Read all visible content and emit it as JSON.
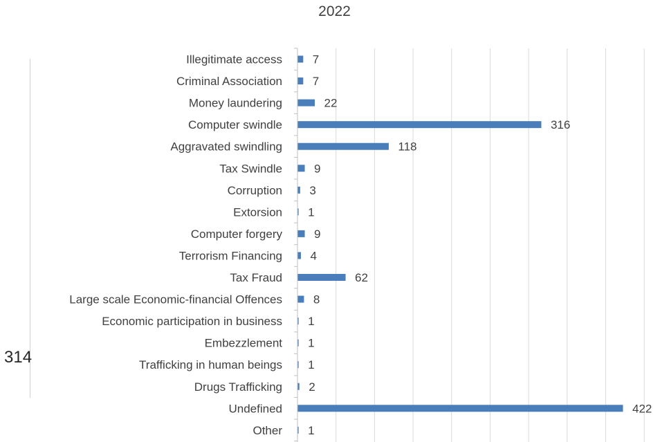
{
  "page": {
    "number_label": "314"
  },
  "chart_data": {
    "type": "bar",
    "orientation": "horizontal",
    "title": "2022",
    "xlabel": "",
    "ylabel": "",
    "xlim": [
      0,
      450
    ],
    "grid": true,
    "categories": [
      "Illegitimate access",
      "Criminal Association",
      "Money laundering",
      "Computer swindle",
      "Aggravated swindling",
      "Tax Swindle",
      "Corruption",
      "Extorsion",
      "Computer forgery",
      "Terrorism Financing",
      "Tax Fraud",
      "Large scale Economic-financial Offences",
      "Economic participation in business",
      "Embezzlement",
      "Trafficking in human beings",
      "Drugs Trafficking",
      "Undefined",
      "Other"
    ],
    "values": [
      7,
      7,
      22,
      316,
      118,
      9,
      3,
      1,
      9,
      4,
      62,
      8,
      1,
      1,
      1,
      2,
      422,
      1
    ],
    "bar_color": "#4a7ebb",
    "gridline_color": "#d9d9d9"
  }
}
